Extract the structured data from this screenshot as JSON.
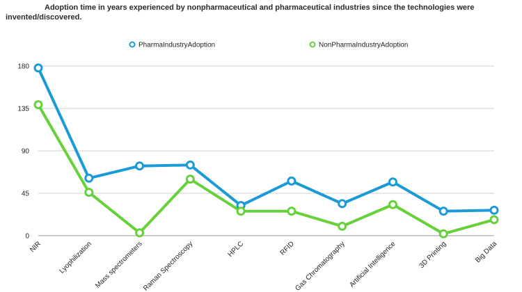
{
  "chart_data": {
    "type": "line",
    "title": "Adoption time in years experienced by nonpharmaceutical and pharmaceutical industries since the technologies were invented/discovered.",
    "categories": [
      "NIR",
      "Lyophilization",
      "Mass spectrometers",
      "Raman Spectroscopy",
      "HPLC",
      "RFID",
      "Gas Chromatography",
      "Artificial Intelligence",
      "3D Printing",
      "Big Data"
    ],
    "series": [
      {
        "name": "PharmaIndustryAdoption",
        "color": "#1a9ad6",
        "values": [
          178,
          61,
          74,
          75,
          32,
          58,
          34,
          57,
          26,
          27
        ]
      },
      {
        "name": "NonPharmaIndustryAdoption",
        "color": "#66d13a",
        "values": [
          139,
          46,
          3,
          60,
          26,
          26,
          10,
          33,
          2,
          17
        ]
      }
    ],
    "yticks": [
      "0",
      "45",
      "90",
      "135",
      "180"
    ],
    "ylim": [
      0,
      180
    ],
    "grid": true,
    "legend_position": "top"
  }
}
